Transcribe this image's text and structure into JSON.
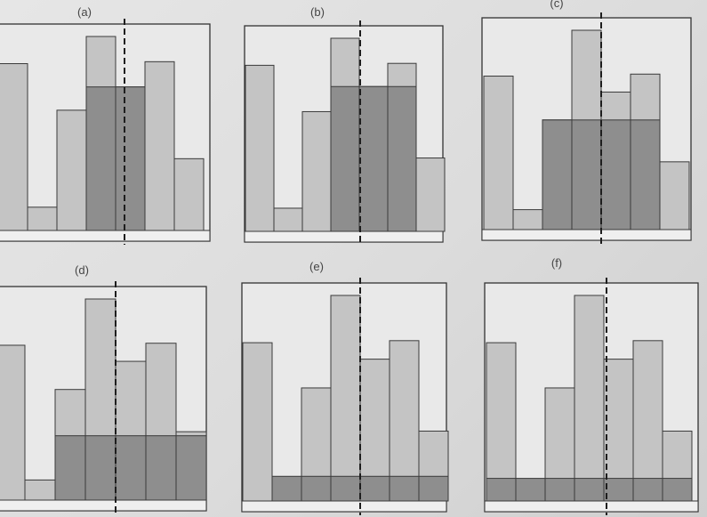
{
  "panels": [
    {
      "label": "(a)",
      "bars": [
        0.86,
        0.12,
        0.62,
        1.0,
        0.74,
        0.87,
        0.37
      ],
      "fill": [
        0,
        0,
        0,
        0.74,
        0.74,
        0,
        0
      ]
    },
    {
      "label": "(b)",
      "bars": [
        0.86,
        0.12,
        0.62,
        1.0,
        0.75,
        0.87,
        0.38
      ],
      "fill": [
        0,
        0,
        0,
        0.75,
        0.75,
        0.75,
        0
      ]
    },
    {
      "label": "(c)",
      "bars": [
        0.77,
        0.1,
        0.55,
        1.0,
        0.69,
        0.78,
        0.34
      ],
      "fill": [
        0,
        0,
        0.55,
        0.55,
        0.55,
        0.55,
        0
      ]
    },
    {
      "label": "(d)",
      "bars": [
        0.77,
        0.1,
        0.55,
        1.0,
        0.69,
        0.78,
        0.34
      ],
      "fill": [
        0,
        0,
        0.32,
        0.32,
        0.32,
        0.32,
        0.32
      ]
    },
    {
      "label": "(e)",
      "bars": [
        0.77,
        0.1,
        0.55,
        1.0,
        0.69,
        0.78,
        0.34
      ],
      "fill": [
        0,
        0.12,
        0.12,
        0.12,
        0.12,
        0.12,
        0.12
      ]
    },
    {
      "label": "(f)",
      "bars": [
        0.77,
        0.1,
        0.55,
        1.0,
        0.69,
        0.78,
        0.34
      ],
      "fill": [
        0.11,
        0.11,
        0.11,
        0.11,
        0.11,
        0.11,
        0.11
      ]
    }
  ],
  "colors": {
    "bar": "#c4c4c4",
    "fill": "#8e8e8e",
    "frame": "#333333",
    "axis": "#efefef"
  }
}
